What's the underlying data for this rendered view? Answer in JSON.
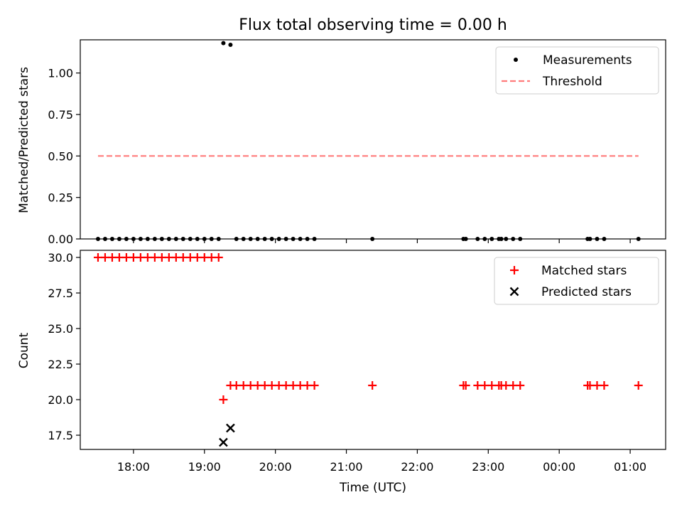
{
  "chart_data": [
    {
      "type": "scatter",
      "title": "Flux total observing time = 0.00 h",
      "ylabel": "Matched/Predicted stars",
      "xlabel": "",
      "xlim": [
        "17:15",
        "25:30"
      ],
      "ylim": [
        0,
        1.2
      ],
      "yticks": [
        0.0,
        0.25,
        0.5,
        0.75,
        1.0
      ],
      "ytick_labels": [
        "0.00",
        "0.25",
        "0.50",
        "0.75",
        "1.00"
      ],
      "legend_position": "top-right",
      "series": [
        {
          "name": "Measurements",
          "marker": "dot",
          "color": "#000000",
          "points": [
            [
              "17:30",
              0
            ],
            [
              "17:36",
              0
            ],
            [
              "17:42",
              0
            ],
            [
              "17:48",
              0
            ],
            [
              "17:54",
              0
            ],
            [
              "18:00",
              0
            ],
            [
              "18:06",
              0
            ],
            [
              "18:12",
              0
            ],
            [
              "18:18",
              0
            ],
            [
              "18:24",
              0
            ],
            [
              "18:30",
              0
            ],
            [
              "18:36",
              0
            ],
            [
              "18:42",
              0
            ],
            [
              "18:48",
              0
            ],
            [
              "18:54",
              0
            ],
            [
              "19:00",
              0
            ],
            [
              "19:06",
              0
            ],
            [
              "19:12",
              0
            ],
            [
              "19:16",
              1.18
            ],
            [
              "19:22",
              1.17
            ],
            [
              "19:27",
              0
            ],
            [
              "19:33",
              0
            ],
            [
              "19:39",
              0
            ],
            [
              "19:45",
              0
            ],
            [
              "19:51",
              0
            ],
            [
              "19:57",
              0
            ],
            [
              "20:03",
              0
            ],
            [
              "20:09",
              0
            ],
            [
              "20:15",
              0
            ],
            [
              "20:21",
              0
            ],
            [
              "20:27",
              0
            ],
            [
              "20:33",
              0
            ],
            [
              "21:22",
              0
            ],
            [
              "22:39",
              0
            ],
            [
              "22:41",
              0
            ],
            [
              "22:51",
              0
            ],
            [
              "22:57",
              0
            ],
            [
              "23:03",
              0
            ],
            [
              "23:09",
              0
            ],
            [
              "23:11",
              0
            ],
            [
              "23:15",
              0
            ],
            [
              "23:21",
              0
            ],
            [
              "23:27",
              0
            ],
            [
              "24:24",
              0
            ],
            [
              "24:26",
              0
            ],
            [
              "24:32",
              0
            ],
            [
              "24:38",
              0
            ],
            [
              "25:07",
              0
            ]
          ]
        },
        {
          "name": "Threshold",
          "style": "dashed-line",
          "color": "#ff7b7b",
          "points": [
            [
              "17:30",
              0.5
            ],
            [
              "25:07",
              0.5
            ]
          ]
        }
      ]
    },
    {
      "type": "scatter",
      "title": "",
      "xlabel": "Time (UTC)",
      "ylabel": "Count",
      "xlim": [
        "17:15",
        "25:30"
      ],
      "ylim": [
        16.5,
        30.5
      ],
      "yticks": [
        17.5,
        20.0,
        22.5,
        25.0,
        27.5,
        30.0
      ],
      "ytick_labels": [
        "17.5",
        "20.0",
        "22.5",
        "25.0",
        "27.5",
        "30.0"
      ],
      "xticks": [
        "18:00",
        "19:00",
        "20:00",
        "21:00",
        "22:00",
        "23:00",
        "24:00",
        "25:00"
      ],
      "xtick_labels": [
        "18:00",
        "19:00",
        "20:00",
        "21:00",
        "22:00",
        "23:00",
        "00:00",
        "01:00"
      ],
      "legend_position": "top-right",
      "series": [
        {
          "name": "Matched stars",
          "marker": "plus",
          "color": "#ff0000",
          "points": [
            [
              "17:30",
              30
            ],
            [
              "17:36",
              30
            ],
            [
              "17:42",
              30
            ],
            [
              "17:48",
              30
            ],
            [
              "17:54",
              30
            ],
            [
              "18:00",
              30
            ],
            [
              "18:06",
              30
            ],
            [
              "18:12",
              30
            ],
            [
              "18:18",
              30
            ],
            [
              "18:24",
              30
            ],
            [
              "18:30",
              30
            ],
            [
              "18:36",
              30
            ],
            [
              "18:42",
              30
            ],
            [
              "18:48",
              30
            ],
            [
              "18:54",
              30
            ],
            [
              "19:00",
              30
            ],
            [
              "19:06",
              30
            ],
            [
              "19:12",
              30
            ],
            [
              "19:16",
              20
            ],
            [
              "19:22",
              21
            ],
            [
              "19:27",
              21
            ],
            [
              "19:33",
              21
            ],
            [
              "19:39",
              21
            ],
            [
              "19:45",
              21
            ],
            [
              "19:51",
              21
            ],
            [
              "19:57",
              21
            ],
            [
              "20:03",
              21
            ],
            [
              "20:09",
              21
            ],
            [
              "20:15",
              21
            ],
            [
              "20:21",
              21
            ],
            [
              "20:27",
              21
            ],
            [
              "20:33",
              21
            ],
            [
              "21:22",
              21
            ],
            [
              "22:39",
              21
            ],
            [
              "22:41",
              21
            ],
            [
              "22:51",
              21
            ],
            [
              "22:57",
              21
            ],
            [
              "23:03",
              21
            ],
            [
              "23:09",
              21
            ],
            [
              "23:11",
              21
            ],
            [
              "23:15",
              21
            ],
            [
              "23:21",
              21
            ],
            [
              "23:27",
              21
            ],
            [
              "24:24",
              21
            ],
            [
              "24:26",
              21
            ],
            [
              "24:32",
              21
            ],
            [
              "24:38",
              21
            ],
            [
              "25:07",
              21
            ]
          ]
        },
        {
          "name": "Predicted stars",
          "marker": "x",
          "color": "#000000",
          "points": [
            [
              "19:16",
              17
            ],
            [
              "19:22",
              18
            ]
          ]
        }
      ]
    }
  ]
}
